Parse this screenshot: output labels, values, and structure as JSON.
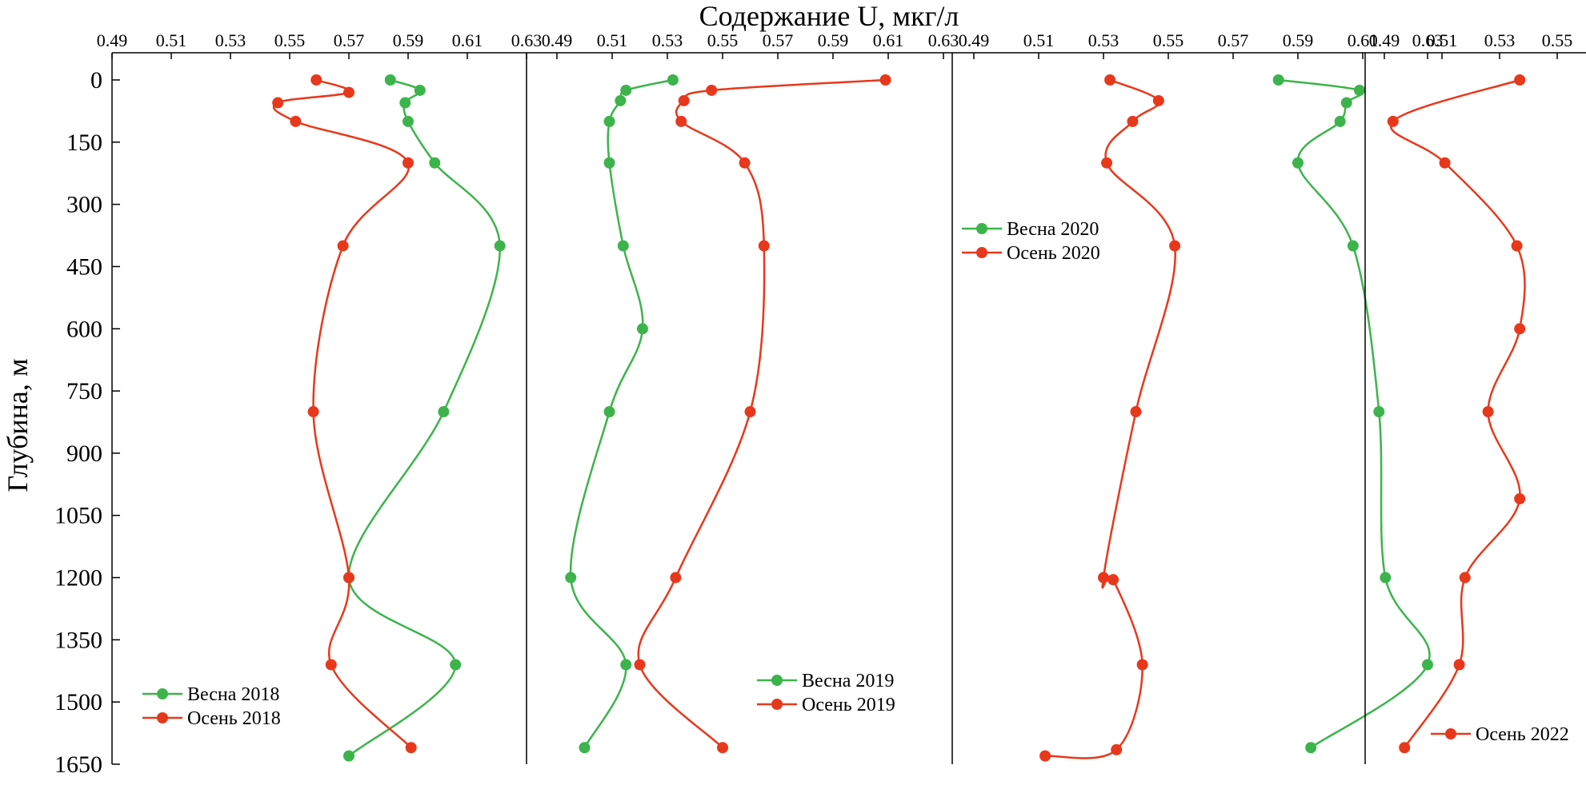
{
  "chart_data": {
    "type": "line",
    "xlabel": "Содержание U, мкг/л",
    "ylabel": "Глубина, м",
    "ylim": [
      0,
      1650
    ],
    "y_inverted": true,
    "y_ticks": [
      "0",
      "150",
      "300",
      "450",
      "600",
      "750",
      "900",
      "1050",
      "1200",
      "1350",
      "1500",
      "1650"
    ],
    "colors": {
      "spring": "#3cb44b",
      "autumn": "#e8381c",
      "axis": "#000000"
    },
    "panels": [
      {
        "xlim": [
          0.49,
          0.63
        ],
        "x_ticks": [
          "0.49",
          "0.51",
          "0.53",
          "0.55",
          "0.57",
          "0.59",
          "0.61",
          "0.63"
        ],
        "legend_position": "bottom-left",
        "series": [
          {
            "name": "Весна 2018",
            "color": "#3cb44b",
            "points": [
              [
                0.584,
                0
              ],
              [
                0.594,
                25
              ],
              [
                0.589,
                55
              ],
              [
                0.59,
                100
              ],
              [
                0.599,
                200
              ],
              [
                0.621,
                400
              ],
              [
                0.602,
                800
              ],
              [
                0.57,
                1200
              ],
              [
                0.606,
                1410
              ],
              [
                0.57,
                1630
              ]
            ]
          },
          {
            "name": "Осень 2018",
            "color": "#e8381c",
            "points": [
              [
                0.559,
                0
              ],
              [
                0.57,
                30
              ],
              [
                0.546,
                55
              ],
              [
                0.552,
                100
              ],
              [
                0.59,
                200
              ],
              [
                0.568,
                400
              ],
              [
                0.558,
                800
              ],
              [
                0.57,
                1200
              ],
              [
                0.564,
                1410
              ],
              [
                0.591,
                1610
              ]
            ]
          }
        ]
      },
      {
        "xlim": [
          0.49,
          0.63
        ],
        "x_ticks": [
          "0.49",
          "0.51",
          "0.53",
          "0.55",
          "0.57",
          "0.59",
          "0.61",
          "0.63"
        ],
        "legend_position": "bottom-right",
        "series": [
          {
            "name": "Весна 2019",
            "color": "#3cb44b",
            "points": [
              [
                0.532,
                0
              ],
              [
                0.515,
                25
              ],
              [
                0.513,
                50
              ],
              [
                0.509,
                100
              ],
              [
                0.509,
                200
              ],
              [
                0.514,
                400
              ],
              [
                0.521,
                600
              ],
              [
                0.509,
                800
              ],
              [
                0.495,
                1200
              ],
              [
                0.515,
                1410
              ],
              [
                0.5,
                1610
              ]
            ]
          },
          {
            "name": "Осень 2019",
            "color": "#e8381c",
            "points": [
              [
                0.609,
                0
              ],
              [
                0.546,
                25
              ],
              [
                0.536,
                50
              ],
              [
                0.535,
                100
              ],
              [
                0.558,
                200
              ],
              [
                0.565,
                400
              ],
              [
                0.56,
                800
              ],
              [
                0.533,
                1200
              ],
              [
                0.52,
                1410
              ],
              [
                0.55,
                1610
              ]
            ]
          }
        ]
      },
      {
        "xlim": [
          0.49,
          0.63
        ],
        "x_ticks": [
          "0.49",
          "0.51",
          "0.53",
          "0.55",
          "0.57",
          "0.59",
          "0.61",
          "0.63"
        ],
        "legend_position": "top-left",
        "series": [
          {
            "name": "Весна 2020",
            "color": "#3cb44b",
            "points": [
              [
                0.584,
                0
              ],
              [
                0.609,
                25
              ],
              [
                0.605,
                55
              ],
              [
                0.603,
                100
              ],
              [
                0.59,
                200
              ],
              [
                0.607,
                400
              ],
              [
                0.615,
                800
              ],
              [
                0.617,
                1200
              ],
              [
                0.63,
                1410
              ],
              [
                0.594,
                1610
              ]
            ]
          },
          {
            "name": "Осень 2020",
            "color": "#e8381c",
            "points": [
              [
                0.532,
                0
              ],
              [
                0.547,
                50
              ],
              [
                0.539,
                100
              ],
              [
                0.531,
                200
              ],
              [
                0.552,
                400
              ],
              [
                0.54,
                800
              ],
              [
                0.53,
                1200
              ],
              [
                0.533,
                1205
              ],
              [
                0.542,
                1410
              ],
              [
                0.534,
                1615
              ],
              [
                0.512,
                1630
              ]
            ]
          }
        ]
      },
      {
        "xlim": [
          0.49,
          0.56
        ],
        "x_ticks": [
          "0.49",
          "0.51",
          "0.53",
          "0.55"
        ],
        "legend_position": "bottom-right",
        "series": [
          {
            "name": "Осень 2022",
            "color": "#e8381c",
            "points": [
              [
                0.537,
                0
              ],
              [
                0.493,
                100
              ],
              [
                0.511,
                200
              ],
              [
                0.536,
                400
              ],
              [
                0.537,
                600
              ],
              [
                0.526,
                800
              ],
              [
                0.537,
                1010
              ],
              [
                0.518,
                1200
              ],
              [
                0.516,
                1410
              ],
              [
                0.497,
                1610
              ]
            ]
          }
        ]
      }
    ]
  }
}
